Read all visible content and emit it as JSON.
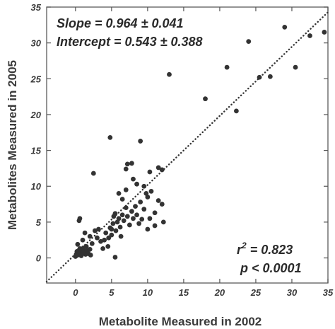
{
  "chart_data": {
    "type": "scatter",
    "xlabel": "Metabolite Measured in 2002",
    "ylabel": "Metabolites Measured in 2005",
    "xlim": [
      -4,
      35
    ],
    "ylim": [
      -3.5,
      35
    ],
    "xticks": [
      0,
      5,
      10,
      15,
      20,
      25,
      30,
      35
    ],
    "yticks": [
      0,
      5,
      10,
      15,
      20,
      25,
      30,
      35
    ],
    "grid": false,
    "colors": {
      "points": "#333333",
      "fit_line": "#333333",
      "axes": "#555555"
    },
    "annotations": {
      "slope": "Slope = 0.964 ± 0.041",
      "intercept": "Intercept = 0.543 ± 0.388",
      "r2_prefix": "r",
      "r2_exp": "2",
      "r2_value": " = 0.823",
      "p_value": "p < 0.0001"
    },
    "fit_line": {
      "slope": 0.964,
      "intercept": 0.543,
      "style": "dotted"
    },
    "points": [
      [
        0.0,
        0.2
      ],
      [
        0.1,
        0.5
      ],
      [
        0.2,
        0.9
      ],
      [
        0.3,
        0.4
      ],
      [
        0.4,
        1.0
      ],
      [
        0.5,
        0.6
      ],
      [
        0.6,
        1.3
      ],
      [
        0.7,
        0.8
      ],
      [
        0.8,
        0.3
      ],
      [
        0.9,
        1.1
      ],
      [
        1.0,
        0.7
      ],
      [
        1.1,
        1.4
      ],
      [
        1.2,
        0.9
      ],
      [
        1.4,
        0.5
      ],
      [
        1.5,
        1.6
      ],
      [
        1.6,
        1.0
      ],
      [
        1.8,
        0.6
      ],
      [
        2.0,
        1.2
      ],
      [
        2.1,
        0.4
      ],
      [
        0.3,
        1.9
      ],
      [
        0.5,
        5.2
      ],
      [
        0.6,
        5.5
      ],
      [
        1.0,
        2.5
      ],
      [
        1.3,
        3.5
      ],
      [
        2.0,
        3.0
      ],
      [
        2.3,
        2.0
      ],
      [
        2.5,
        11.8
      ],
      [
        2.7,
        3.8
      ],
      [
        3.0,
        2.8
      ],
      [
        3.2,
        4.0
      ],
      [
        3.5,
        2.3
      ],
      [
        4.0,
        2.5
      ],
      [
        4.2,
        3.5
      ],
      [
        4.5,
        1.6
      ],
      [
        4.6,
        2.8
      ],
      [
        4.8,
        4.2
      ],
      [
        5.0,
        3.2
      ],
      [
        5.2,
        4.8
      ],
      [
        5.3,
        5.8
      ],
      [
        5.5,
        6.2
      ],
      [
        5.6,
        3.8
      ],
      [
        5.8,
        5.0
      ],
      [
        6.0,
        5.5
      ],
      [
        6.2,
        4.3
      ],
      [
        6.5,
        6.0
      ],
      [
        6.7,
        5.2
      ],
      [
        7.0,
        7.0
      ],
      [
        7.2,
        5.8
      ],
      [
        7.5,
        4.6
      ],
      [
        7.8,
        6.5
      ],
      [
        8.0,
        5.5
      ],
      [
        8.3,
        7.2
      ],
      [
        8.5,
        6.0
      ],
      [
        8.8,
        4.8
      ],
      [
        9.0,
        7.8
      ],
      [
        9.2,
        5.4
      ],
      [
        9.5,
        6.8
      ],
      [
        10.0,
        8.5
      ],
      [
        10.3,
        5.5
      ],
      [
        10.5,
        9.3
      ],
      [
        11.0,
        6.3
      ],
      [
        11.5,
        8.0
      ],
      [
        12.0,
        7.5
      ],
      [
        12.2,
        5.0
      ],
      [
        4.8,
        16.8
      ],
      [
        5.5,
        0.1
      ],
      [
        7.0,
        12.4
      ],
      [
        7.2,
        13.1
      ],
      [
        7.8,
        13.2
      ],
      [
        8.0,
        11.0
      ],
      [
        8.5,
        10.3
      ],
      [
        9.0,
        16.3
      ],
      [
        9.5,
        10.0
      ],
      [
        10.3,
        12.0
      ],
      [
        11.5,
        12.6
      ],
      [
        12.0,
        12.3
      ],
      [
        6.0,
        9.0
      ],
      [
        6.5,
        8.2
      ],
      [
        7.0,
        9.5
      ],
      [
        9.8,
        9.0
      ],
      [
        10.0,
        4.0
      ],
      [
        11.0,
        4.5
      ],
      [
        3.8,
        1.3
      ],
      [
        5.0,
        4.0
      ],
      [
        6.3,
        3.0
      ],
      [
        13.0,
        25.6
      ],
      [
        18.0,
        22.2
      ],
      [
        21.0,
        26.6
      ],
      [
        22.3,
        20.5
      ],
      [
        24.0,
        30.2
      ],
      [
        25.5,
        25.2
      ],
      [
        27.0,
        25.3
      ],
      [
        29.0,
        32.2
      ],
      [
        30.5,
        26.6
      ],
      [
        32.5,
        31.0
      ],
      [
        34.5,
        31.5
      ]
    ]
  }
}
